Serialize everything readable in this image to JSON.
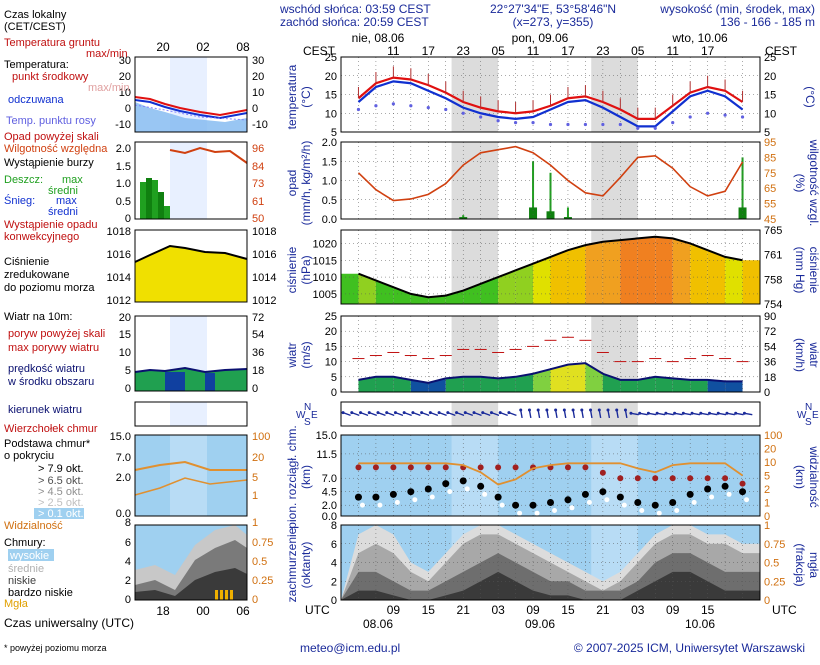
{
  "header": {
    "sunrise": "wschód słońca: 03:59 CEST",
    "sunset": "zachód słońca: 20:59 CEST",
    "coords": "22°27'34\"E, 53°58'46\"N",
    "grid": "(x=273, y=355)",
    "elev_label": "wysokość (min, środek, max)",
    "elev_values": "136 - 166 - 185 m"
  },
  "legend": {
    "local_time": "Czas lokalny",
    "local_time2": "(CET/CEST)",
    "soil": "Temperatura gruntu",
    "maxmin": "max/min",
    "temp": "Temperatura:",
    "mid": "punkt środkowy",
    "maxmin2": "max/min",
    "felt": "odczuwana",
    "dew": "Temp. punktu rosy",
    "precip_over": "Opad powyżej skali",
    "humidity": "Wilgotność względna",
    "storm": "Wystąpienie burzy",
    "rain": "Deszcz:",
    "snow": "Śnieg:",
    "max": "max",
    "avg": "średni",
    "convective": "Wystąpienie opadu",
    "convective2": "konwekcyjnego",
    "pressure": "Ciśnienie",
    "pressure2": "zredukowane",
    "pressure3": "do poziomu morza",
    "wind10": "Wiatr na 10m:",
    "gust_over": "poryw powyżej skali",
    "gust_max": "max porywy wiatru",
    "wind_speed": "prędkość wiatru",
    "wind_speed2": "w środku obszaru",
    "wind_dir": "kierunek wiatru",
    "cloud_top": "Wierzchołek chmur",
    "cloud_base": "Podstawa chmur*",
    "cloud_base2": "o pokryciu",
    "c79": "> 7.9 okt.",
    "c65": "> 6.5 okt.",
    "c45": "> 4.5 okt.",
    "c25": "> 2.5 okt.",
    "c01": "> 0.1 okt.",
    "visibility": "Widzialność",
    "clouds": "Chmury:",
    "high": "wysokie",
    "middle": "średnie",
    "low": "niskie",
    "very_low": "bardzo niskie",
    "fog": "Mgła",
    "utc": "Czas uniwersalny (UTC)",
    "footnote": "* powyżej poziomu morza"
  },
  "mini_axes": {
    "top_ticks": [
      "20",
      "02",
      "08"
    ],
    "bottom_ticks": [
      "18",
      "00",
      "06"
    ],
    "temp_left": [
      "30",
      "20",
      "10",
      "0",
      "-10"
    ],
    "temp_right": [
      "30",
      "20",
      "10",
      "0",
      "-10"
    ],
    "hum_left": [
      "2.0",
      "1.5",
      "1.0",
      "0.5",
      "0"
    ],
    "hum_right": [
      "96",
      "84",
      "73",
      "61",
      "50"
    ],
    "pres_left": [
      "1018",
      "1016",
      "1014",
      "1012"
    ],
    "pres_right": [
      "1018",
      "1016",
      "1014",
      "1012"
    ],
    "wind_left": [
      "20",
      "15",
      "10",
      "5",
      "0"
    ],
    "wind_right": [
      "72",
      "54",
      "36",
      "18",
      "0"
    ],
    "cb_left": [
      "15.0",
      "7.0",
      "2.0",
      "0.0"
    ],
    "cb_right": [
      "100",
      "20",
      "5",
      "1"
    ],
    "cl_left": [
      "8",
      "6",
      "4",
      "2",
      "0"
    ],
    "cl_right": [
      "1",
      "0.75",
      "0.5",
      "0.25",
      "0"
    ]
  },
  "main_axes": {
    "cest": "CEST",
    "utc": "UTC",
    "days_top": [
      "nie, 08.06",
      "pon, 09.06",
      "wto, 10.06"
    ],
    "hours_top": [
      "11",
      "17",
      "23",
      "05",
      "11",
      "17",
      "23",
      "05",
      "11",
      "17"
    ],
    "hours_bottom": [
      "09",
      "15",
      "21",
      "03",
      "09",
      "15",
      "21",
      "03",
      "09",
      "15"
    ],
    "dates_bottom": [
      "08.06",
      "09.06",
      "10.06"
    ],
    "temp_left_label": "temperatura",
    "temp_left_unit": "(°C)",
    "temp_right_unit": "(°C)",
    "precip_label": "opad",
    "precip_unit": "(mm/h, kg/m²/h)",
    "humid_unit": "(%)",
    "humid_label": "wilgotność wzgl.",
    "pres_label": "ciśnienie",
    "pres_unit": "(hPa)",
    "pres_right_unit": "(mm Hg)",
    "pres_right_label": "ciśnienie",
    "wind_label": "wiatr",
    "wind_unit": "(m/s)",
    "wind_right_unit": "(km/h)",
    "wind_right_label": "wiatr",
    "cloud_label": "pion. rozciągł. chm.",
    "cloud_unit": "(km)",
    "vis_unit": "(km)",
    "vis_label": "widzialność",
    "cover_label": "zachmurzenie",
    "cover_unit": "(oktanty)",
    "fog_unit": "(frakcja)",
    "fog_label": "mgła",
    "compass": [
      "N",
      "W",
      "E",
      "S"
    ]
  },
  "footer": {
    "email": "meteo@icm.edu.pl",
    "copyright": "© 2007-2025 ICM, Uniwersytet Warszawski"
  },
  "colors": {
    "temp": "#e01010",
    "felt": "#1030d0",
    "dew": "#6060e0",
    "humidity": "#d04010",
    "pressure_fill": "#f0e000",
    "wind_line": "#0a1070",
    "precip": "#20a020",
    "sky": "#9fd0f0",
    "night": "#dcdcdc"
  },
  "chart_data": [
    {
      "type": "line",
      "title": "temperatura",
      "ylabel": "(°C)",
      "ylim": [
        5,
        25
      ],
      "x_hours_utc": [
        3,
        6,
        9,
        12,
        15,
        18,
        21,
        24,
        27,
        30,
        33,
        36,
        39,
        42,
        45,
        48,
        51,
        54,
        57,
        60,
        63,
        66,
        69
      ],
      "series": [
        {
          "name": "temperatura",
          "values": [
            14,
            18,
            19.5,
            19,
            17.5,
            15.5,
            13,
            11.5,
            10.5,
            10,
            10.5,
            12,
            14,
            14.5,
            13,
            11,
            8.5,
            8.5,
            12,
            15.5,
            17,
            16,
            13
          ]
        },
        {
          "name": "odczuwana",
          "values": [
            13,
            17,
            18.5,
            18,
            16,
            14,
            11.5,
            10,
            9,
            8.5,
            9,
            11,
            13,
            13.5,
            11.5,
            9,
            6.5,
            6.5,
            10.5,
            14.5,
            16,
            14.5,
            11
          ]
        },
        {
          "name": "temp. punktu rosy",
          "values": [
            11,
            12,
            12.5,
            12,
            11.5,
            11,
            10,
            9,
            8,
            7.5,
            7.5,
            7,
            7,
            7,
            7,
            7,
            6,
            6,
            7.5,
            9,
            10,
            9.5,
            9
          ]
        }
      ]
    },
    {
      "type": "bar",
      "title": "opad / wilgotność wzgl.",
      "ylabel": "(mm/h, kg/m²/h)",
      "y2label": "(%)",
      "ylim": [
        0,
        2
      ],
      "y2lim": [
        45,
        95
      ],
      "x_hours_utc": [
        3,
        6,
        9,
        12,
        15,
        18,
        21,
        24,
        27,
        30,
        33,
        36,
        39,
        42,
        45,
        48,
        51,
        54,
        57,
        60,
        63,
        66,
        69
      ],
      "series": [
        {
          "name": "wilgotność względna",
          "values": [
            75,
            64,
            57,
            58,
            61,
            68,
            80,
            88,
            90,
            92,
            88,
            80,
            70,
            62,
            60,
            72,
            85,
            86,
            78,
            66,
            60,
            63,
            82
          ]
        },
        {
          "name": "deszcz max",
          "values": [
            0,
            0,
            0,
            0,
            0,
            0,
            0.1,
            0,
            0,
            0,
            1.5,
            1.2,
            0.3,
            0,
            0,
            0,
            0,
            0,
            0,
            0,
            0,
            0,
            1.6
          ]
        },
        {
          "name": "deszcz średni",
          "values": [
            0,
            0,
            0,
            0,
            0,
            0,
            0.05,
            0,
            0,
            0,
            0.3,
            0.2,
            0.05,
            0,
            0,
            0,
            0,
            0,
            0,
            0,
            0,
            0,
            0.3
          ]
        }
      ]
    },
    {
      "type": "area",
      "title": "ciśnienie",
      "ylabel": "(hPa)",
      "y2label": "(mm Hg)",
      "ylim": [
        1002,
        1024
      ],
      "x_hours_utc": [
        3,
        6,
        9,
        12,
        15,
        18,
        21,
        24,
        27,
        30,
        33,
        36,
        39,
        42,
        45,
        48,
        51,
        54,
        57,
        60,
        63,
        66,
        69
      ],
      "series": [
        {
          "name": "ciśnienie zredukowane",
          "values": [
            1011,
            1009,
            1007,
            1005,
            1004,
            1004.5,
            1006,
            1008,
            1010,
            1012,
            1014,
            1016,
            1018,
            1019.5,
            1020.5,
            1021,
            1021.5,
            1022,
            1021.5,
            1020,
            1018,
            1016,
            1015
          ]
        }
      ]
    },
    {
      "type": "line",
      "title": "wiatr",
      "ylabel": "(m/s)",
      "y2label": "(km/h)",
      "ylim": [
        0,
        25
      ],
      "x_hours_utc": [
        3,
        6,
        9,
        12,
        15,
        18,
        21,
        24,
        27,
        30,
        33,
        36,
        39,
        42,
        45,
        48,
        51,
        54,
        57,
        60,
        63,
        66,
        69
      ],
      "series": [
        {
          "name": "prędkość wiatru",
          "values": [
            4,
            5,
            5,
            4,
            3,
            4.5,
            5,
            5,
            4.5,
            5,
            6,
            7.5,
            9,
            9.5,
            6,
            4,
            4,
            5,
            4.5,
            4,
            4,
            3.5,
            3.5
          ]
        },
        {
          "name": "max porywy wiatru",
          "values": [
            11,
            12,
            13,
            12,
            11,
            12,
            14,
            14,
            13,
            14,
            15,
            17,
            18,
            17,
            13,
            10,
            10,
            11,
            10,
            11,
            12,
            11,
            10
          ]
        }
      ]
    },
    {
      "type": "scatter",
      "title": "pion. rozciągł. chm. / widzialność",
      "ylabel": "(km)",
      "y2label": "(km)",
      "ylim": [
        0,
        15
      ],
      "y2lim": [
        0,
        100
      ],
      "x_hours_utc": [
        3,
        6,
        9,
        12,
        15,
        18,
        21,
        24,
        27,
        30,
        33,
        36,
        39,
        42,
        45,
        48,
        51,
        54,
        57,
        60,
        63,
        66,
        69
      ],
      "series": [
        {
          "name": "wierzchołek chmur",
          "values": [
            9,
            9,
            9,
            9,
            9,
            9,
            9,
            9,
            9,
            9,
            9,
            9,
            9,
            9,
            8,
            7,
            7,
            7,
            7,
            7,
            7,
            7,
            6
          ]
        },
        {
          "name": "podstawa chmur",
          "values": [
            3.5,
            3.5,
            4,
            4.5,
            5,
            6,
            6.5,
            5.5,
            3.5,
            2,
            2,
            2.5,
            3,
            4,
            4.5,
            3.5,
            2.5,
            2,
            2.5,
            4,
            5,
            5.5,
            4.5
          ]
        },
        {
          "name": "widzialność",
          "values": [
            20,
            20,
            20,
            20,
            20,
            20,
            18,
            12,
            6,
            8,
            15,
            18,
            20,
            20,
            20,
            20,
            15,
            12,
            18,
            20,
            20,
            20,
            10
          ]
        }
      ]
    },
    {
      "type": "area",
      "title": "zachmurzenie / mgła",
      "ylabel": "(oktanty)",
      "y2label": "(frakcja)",
      "ylim": [
        0,
        8
      ],
      "y2lim": [
        0,
        1
      ],
      "x_hours_utc": [
        3,
        6,
        9,
        12,
        15,
        18,
        21,
        24,
        27,
        30,
        33,
        36,
        39,
        42,
        45,
        48,
        51,
        54,
        57,
        60,
        63,
        66,
        69
      ],
      "series": [
        {
          "name": "wysokie",
          "values": [
            7,
            8,
            7,
            4,
            3,
            5,
            7,
            8,
            8,
            7,
            6,
            5,
            4,
            3,
            2,
            3,
            5,
            7,
            8,
            8,
            7,
            7,
            6
          ]
        },
        {
          "name": "średnie",
          "values": [
            5,
            6,
            5,
            3,
            2,
            4,
            6,
            7,
            7,
            6,
            5,
            4,
            3,
            2,
            1,
            2,
            4,
            6,
            7,
            7,
            6,
            6,
            5
          ]
        },
        {
          "name": "niskie",
          "values": [
            3,
            3,
            2,
            1,
            1,
            2,
            3,
            4,
            5,
            4,
            3,
            2,
            2,
            1,
            1,
            1,
            2,
            4,
            5,
            5,
            4,
            3,
            3
          ]
        },
        {
          "name": "bardzo niskie",
          "values": [
            1,
            1,
            0.5,
            0,
            0,
            0.5,
            1,
            2,
            3,
            2,
            1,
            0.5,
            0.5,
            0,
            0,
            0,
            1,
            2,
            3,
            3,
            2,
            1,
            1
          ]
        }
      ]
    }
  ]
}
